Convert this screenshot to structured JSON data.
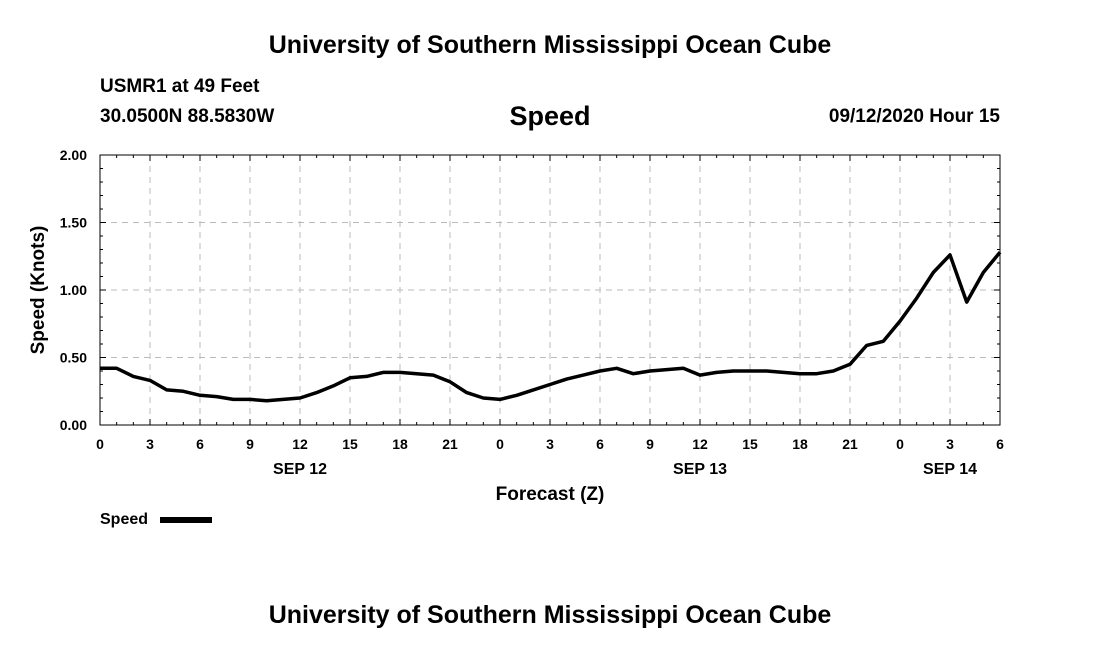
{
  "header": {
    "title": "University of Southern Mississippi Ocean Cube",
    "station": "USMR1 at 49 Feet",
    "coords": "30.0500N 88.5830W",
    "chart_name": "Speed",
    "datetime": "09/12/2020 Hour 15"
  },
  "footer": {
    "title": "University of Southern Mississippi Ocean Cube"
  },
  "colors": {
    "line": "#000000",
    "grid": "#bbbbbb",
    "background": "#ffffff"
  },
  "chart_data": {
    "type": "line",
    "title": "Speed",
    "xlabel": "Forecast (Z)",
    "ylabel": "Speed (Knots)",
    "xlim": [
      0,
      54
    ],
    "ylim": [
      0,
      2
    ],
    "grid": true,
    "legend": {
      "position": "bottom-left",
      "entries": [
        "Speed"
      ]
    },
    "x_ticks": [
      0,
      3,
      6,
      9,
      12,
      15,
      18,
      21,
      24,
      27,
      30,
      33,
      36,
      39,
      42,
      45,
      48,
      51,
      54
    ],
    "x_tick_labels": [
      "0",
      "3",
      "6",
      "9",
      "12",
      "15",
      "18",
      "21",
      "0",
      "3",
      "6",
      "9",
      "12",
      "15",
      "18",
      "21",
      "0",
      "3",
      "6"
    ],
    "y_ticks": [
      0,
      0.5,
      1,
      1.5,
      2
    ],
    "y_tick_labels": [
      "0.00",
      "0.50",
      "1.00",
      "1.50",
      "2.00"
    ],
    "day_labels": [
      {
        "x": 12,
        "label": "SEP 12"
      },
      {
        "x": 36,
        "label": "SEP 13"
      },
      {
        "x": 51,
        "label": "SEP 14"
      }
    ],
    "series": [
      {
        "name": "Speed",
        "x": [
          0,
          1,
          2,
          3,
          4,
          5,
          6,
          7,
          8,
          9,
          10,
          11,
          12,
          13,
          14,
          15,
          16,
          17,
          18,
          19,
          20,
          21,
          22,
          23,
          24,
          25,
          26,
          27,
          28,
          29,
          30,
          31,
          32,
          33,
          34,
          35,
          36,
          37,
          38,
          39,
          40,
          41,
          42,
          43,
          44,
          45,
          46,
          47,
          48,
          49,
          50,
          51,
          52,
          53,
          54
        ],
        "values": [
          0.42,
          0.42,
          0.36,
          0.33,
          0.26,
          0.25,
          0.22,
          0.21,
          0.19,
          0.19,
          0.18,
          0.19,
          0.2,
          0.24,
          0.29,
          0.35,
          0.36,
          0.39,
          0.39,
          0.38,
          0.37,
          0.32,
          0.24,
          0.2,
          0.19,
          0.22,
          0.26,
          0.3,
          0.34,
          0.37,
          0.4,
          0.42,
          0.38,
          0.4,
          0.41,
          0.42,
          0.37,
          0.39,
          0.4,
          0.4,
          0.4,
          0.39,
          0.38,
          0.38,
          0.4,
          0.45,
          0.59,
          0.62,
          0.77,
          0.94,
          1.13,
          1.26,
          0.91,
          1.13,
          1.28
        ]
      }
    ]
  }
}
